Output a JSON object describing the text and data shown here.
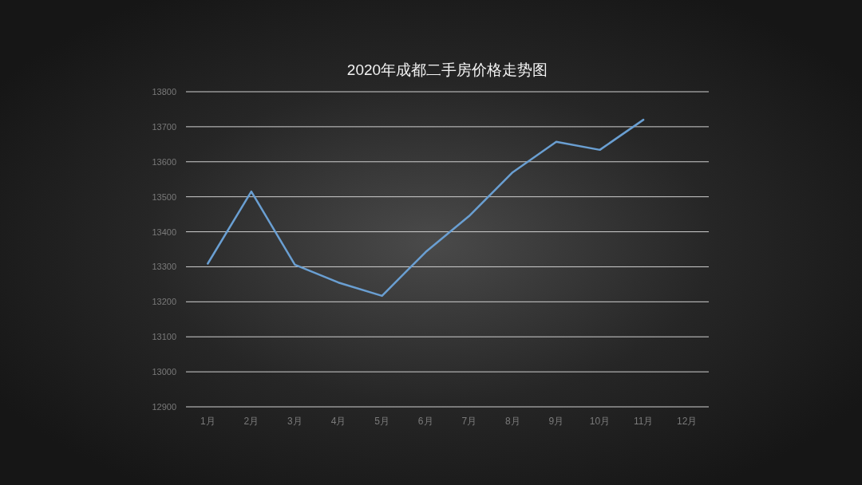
{
  "chart_data": {
    "type": "line",
    "title": "2020年成都二手房价格走势图",
    "categories": [
      "1月",
      "2月",
      "3月",
      "4月",
      "5月",
      "6月",
      "7月",
      "8月",
      "9月",
      "10月",
      "11月",
      "12月"
    ],
    "series": [
      {
        "color": "#6a9fd2",
        "values": [
          13309,
          13515,
          13306,
          13255,
          13217,
          13342,
          13445,
          13570,
          13657,
          13634,
          13720,
          null
        ]
      }
    ],
    "ylim": [
      12900,
      13800
    ],
    "yticks": [
      12900,
      13000,
      13100,
      13200,
      13300,
      13400,
      13500,
      13600,
      13700,
      13800
    ],
    "grid": "y"
  }
}
